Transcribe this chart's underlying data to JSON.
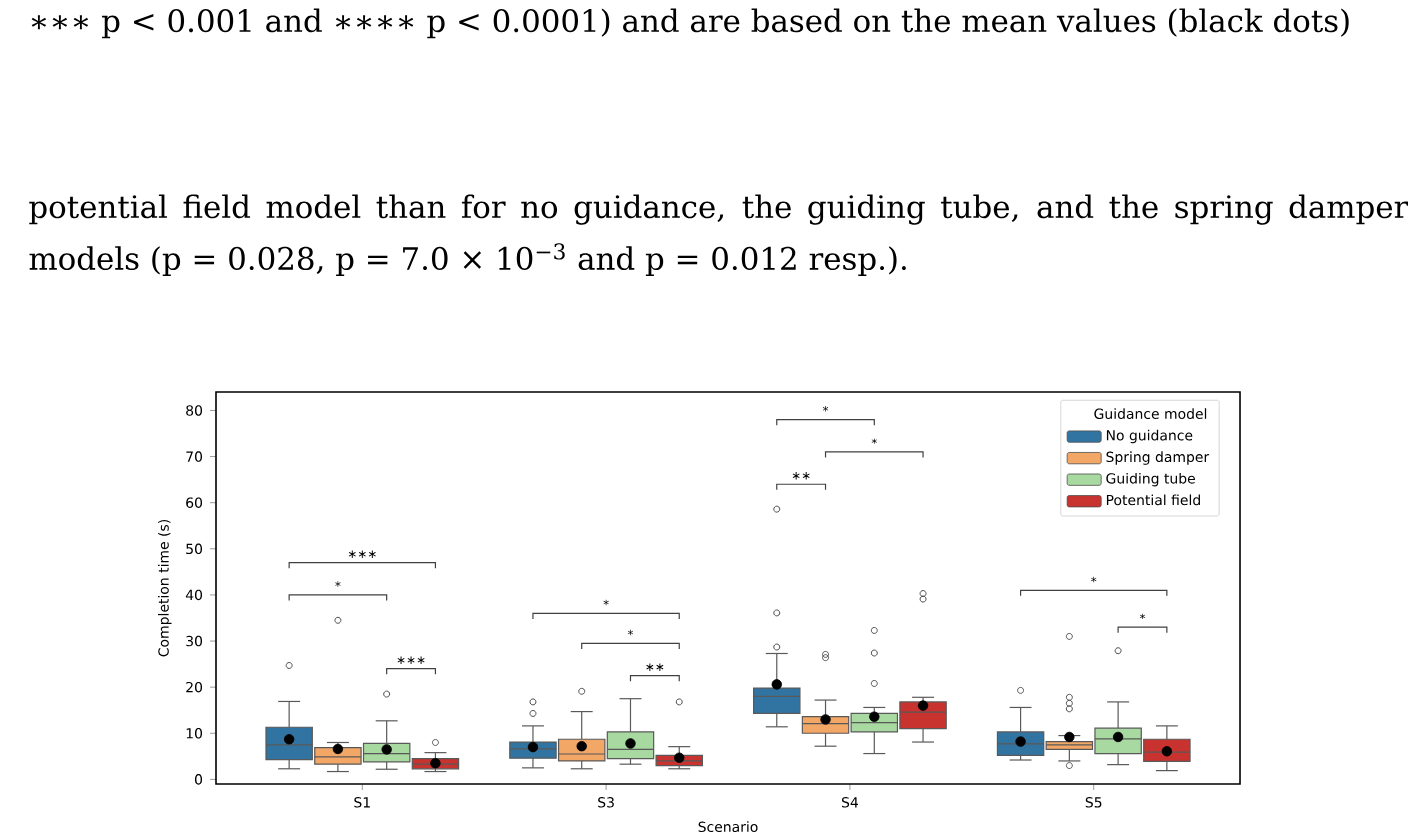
{
  "chart_data": {
    "type": "box",
    "xlabel": "Scenario",
    "ylabel": "Completion time (s)",
    "legend_title": "Guidance model",
    "legend": "top right",
    "categories": [
      "S1",
      "S3",
      "S4",
      "S5"
    ],
    "ylim": [
      -1,
      84
    ],
    "yticks": [
      0,
      10,
      20,
      30,
      40,
      50,
      60,
      70,
      80
    ],
    "series": [
      {
        "name": "No guidance",
        "color": "#3274a1",
        "boxes": [
          {
            "low": 2.3,
            "q1": 4.3,
            "median": 7.5,
            "q3": 11.3,
            "high": 16.9,
            "mean": 8.7,
            "outliers": [
              24.7
            ]
          },
          {
            "low": 2.5,
            "q1": 4.6,
            "median": 6.6,
            "q3": 8.1,
            "high": 11.6,
            "mean": 7.0,
            "outliers": [
              14.3,
              16.8
            ]
          },
          {
            "low": 11.4,
            "q1": 14.3,
            "median": 18.0,
            "q3": 19.8,
            "high": 27.3,
            "mean": 20.6,
            "outliers": [
              28.7,
              36.1,
              58.6
            ]
          },
          {
            "low": 4.2,
            "q1": 5.2,
            "median": 7.7,
            "q3": 10.3,
            "high": 15.6,
            "mean": 8.2,
            "outliers": [
              19.3
            ]
          }
        ]
      },
      {
        "name": "Spring damper",
        "color": "#f2a766",
        "boxes": [
          {
            "low": 1.7,
            "q1": 3.3,
            "median": 4.9,
            "q3": 6.9,
            "high": 8.0,
            "mean": 6.6,
            "outliers": [
              34.5
            ]
          },
          {
            "low": 2.3,
            "q1": 4.0,
            "median": 5.5,
            "q3": 8.7,
            "high": 14.7,
            "mean": 7.2,
            "outliers": [
              19.1
            ]
          },
          {
            "low": 7.2,
            "q1": 10.0,
            "median": 12.1,
            "q3": 13.6,
            "high": 17.2,
            "mean": 13.0,
            "outliers": [
              26.4,
              27.1
            ]
          },
          {
            "low": 4.0,
            "q1": 6.5,
            "median": 7.5,
            "q3": 8.2,
            "high": 9.5,
            "mean": 9.2,
            "outliers": [
              3.0,
              15.3,
              16.5,
              17.8,
              31.0
            ]
          }
        ]
      },
      {
        "name": "Guiding tube",
        "color": "#a8d9a0",
        "boxes": [
          {
            "low": 2.2,
            "q1": 3.8,
            "median": 5.6,
            "q3": 7.8,
            "high": 12.7,
            "mean": 6.5,
            "outliers": [
              18.5
            ]
          },
          {
            "low": 3.3,
            "q1": 4.5,
            "median": 6.5,
            "q3": 10.3,
            "high": 17.5,
            "mean": 7.8
          },
          {
            "low": 5.6,
            "q1": 10.3,
            "median": 12.3,
            "q3": 14.3,
            "high": 15.6,
            "mean": 13.6,
            "outliers": [
              20.8,
              27.4,
              32.3
            ]
          },
          {
            "low": 3.2,
            "q1": 5.6,
            "median": 8.8,
            "q3": 11.1,
            "high": 16.8,
            "mean": 9.2,
            "outliers": [
              27.9
            ]
          }
        ]
      },
      {
        "name": "Potential field",
        "color": "#c8322f",
        "boxes": [
          {
            "low": 1.7,
            "q1": 2.3,
            "median": 3.3,
            "q3": 4.5,
            "high": 5.8,
            "mean": 3.5,
            "outliers": [
              8.0
            ]
          },
          {
            "low": 2.3,
            "q1": 3.0,
            "median": 4.0,
            "q3": 5.2,
            "high": 7.1,
            "mean": 4.7,
            "outliers": [
              16.8
            ]
          },
          {
            "low": 8.1,
            "q1": 11.0,
            "median": 14.6,
            "q3": 16.8,
            "high": 17.8,
            "mean": 16.0,
            "outliers": [
              39.1,
              40.3
            ]
          },
          {
            "low": 1.9,
            "q1": 3.9,
            "median": 5.9,
            "q3": 8.7,
            "high": 11.6,
            "mean": 6.1
          }
        ]
      }
    ],
    "annotations": [
      "∗∗∗ p < 0.001 and ∗∗∗∗ p < 0.0001) and are based on the mean values (black dots)",
      "potential field model than for no guidance, the guiding tube, and the spring damper models (p = 0.028, p = 7.0 × 10$^{−3}$ and p = 0.012 resp.).",
      "∗∗∗",
      "*",
      "∗∗∗",
      "*",
      "*",
      "∗∗",
      "*",
      "*",
      "∗∗",
      "*",
      "*"
    ]
  }
}
